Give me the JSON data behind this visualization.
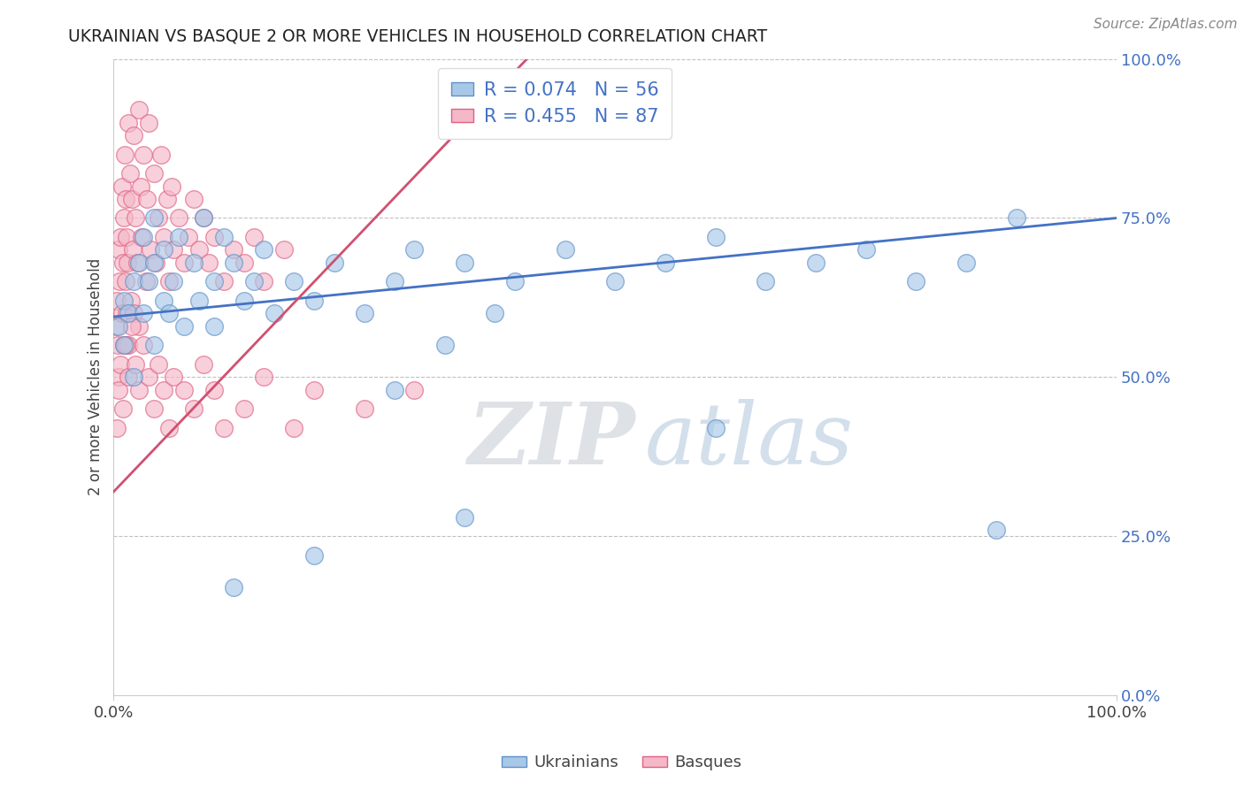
{
  "title": "UKRAINIAN VS BASQUE 2 OR MORE VEHICLES IN HOUSEHOLD CORRELATION CHART",
  "ylabel": "2 or more Vehicles in Household",
  "source_text": "Source: ZipAtlas.com",
  "watermark_zip": "ZIP",
  "watermark_atlas": "atlas",
  "blue_R": 0.074,
  "blue_N": 56,
  "pink_R": 0.455,
  "pink_N": 87,
  "blue_color": "#a8c8e8",
  "pink_color": "#f4b8c8",
  "blue_edge_color": "#6090c8",
  "pink_edge_color": "#e06080",
  "blue_line_color": "#4472c4",
  "pink_line_color": "#d05070",
  "ytick_labels": [
    "0.0%",
    "25.0%",
    "50.0%",
    "75.0%",
    "100.0%"
  ],
  "ytick_values": [
    0.0,
    0.25,
    0.5,
    0.75,
    1.0
  ],
  "blue_x": [
    0.005,
    0.01,
    0.01,
    0.015,
    0.02,
    0.02,
    0.025,
    0.03,
    0.03,
    0.035,
    0.04,
    0.04,
    0.04,
    0.05,
    0.05,
    0.055,
    0.06,
    0.065,
    0.07,
    0.08,
    0.085,
    0.09,
    0.1,
    0.1,
    0.11,
    0.12,
    0.13,
    0.14,
    0.15,
    0.16,
    0.18,
    0.2,
    0.22,
    0.25,
    0.28,
    0.3,
    0.33,
    0.35,
    0.38,
    0.4,
    0.45,
    0.5,
    0.55,
    0.6,
    0.65,
    0.7,
    0.75,
    0.8,
    0.85,
    0.9,
    0.12,
    0.2,
    0.28,
    0.35,
    0.6,
    0.88
  ],
  "blue_y": [
    0.58,
    0.62,
    0.55,
    0.6,
    0.65,
    0.5,
    0.68,
    0.6,
    0.72,
    0.65,
    0.55,
    0.68,
    0.75,
    0.62,
    0.7,
    0.6,
    0.65,
    0.72,
    0.58,
    0.68,
    0.62,
    0.75,
    0.65,
    0.58,
    0.72,
    0.68,
    0.62,
    0.65,
    0.7,
    0.6,
    0.65,
    0.62,
    0.68,
    0.6,
    0.65,
    0.7,
    0.55,
    0.68,
    0.6,
    0.65,
    0.7,
    0.65,
    0.68,
    0.72,
    0.65,
    0.68,
    0.7,
    0.65,
    0.68,
    0.75,
    0.17,
    0.22,
    0.48,
    0.28,
    0.42,
    0.26
  ],
  "pink_x": [
    0.002,
    0.003,
    0.004,
    0.005,
    0.005,
    0.006,
    0.007,
    0.008,
    0.008,
    0.009,
    0.01,
    0.01,
    0.011,
    0.012,
    0.012,
    0.013,
    0.013,
    0.014,
    0.015,
    0.015,
    0.016,
    0.017,
    0.018,
    0.019,
    0.02,
    0.02,
    0.022,
    0.023,
    0.025,
    0.025,
    0.027,
    0.028,
    0.03,
    0.032,
    0.033,
    0.035,
    0.037,
    0.04,
    0.042,
    0.045,
    0.047,
    0.05,
    0.053,
    0.055,
    0.058,
    0.06,
    0.065,
    0.07,
    0.075,
    0.08,
    0.085,
    0.09,
    0.095,
    0.1,
    0.11,
    0.12,
    0.13,
    0.14,
    0.15,
    0.17,
    0.003,
    0.005,
    0.007,
    0.009,
    0.012,
    0.015,
    0.018,
    0.022,
    0.025,
    0.03,
    0.035,
    0.04,
    0.045,
    0.05,
    0.055,
    0.06,
    0.07,
    0.08,
    0.09,
    0.1,
    0.11,
    0.13,
    0.15,
    0.18,
    0.2,
    0.25,
    0.3
  ],
  "pink_y": [
    0.58,
    0.62,
    0.55,
    0.7,
    0.5,
    0.65,
    0.72,
    0.6,
    0.8,
    0.68,
    0.75,
    0.55,
    0.85,
    0.65,
    0.78,
    0.72,
    0.6,
    0.68,
    0.9,
    0.55,
    0.82,
    0.62,
    0.78,
    0.7,
    0.88,
    0.6,
    0.75,
    0.68,
    0.92,
    0.58,
    0.8,
    0.72,
    0.85,
    0.65,
    0.78,
    0.9,
    0.7,
    0.82,
    0.68,
    0.75,
    0.85,
    0.72,
    0.78,
    0.65,
    0.8,
    0.7,
    0.75,
    0.68,
    0.72,
    0.78,
    0.7,
    0.75,
    0.68,
    0.72,
    0.65,
    0.7,
    0.68,
    0.72,
    0.65,
    0.7,
    0.42,
    0.48,
    0.52,
    0.45,
    0.55,
    0.5,
    0.58,
    0.52,
    0.48,
    0.55,
    0.5,
    0.45,
    0.52,
    0.48,
    0.42,
    0.5,
    0.48,
    0.45,
    0.52,
    0.48,
    0.42,
    0.45,
    0.5,
    0.42,
    0.48,
    0.45,
    0.48
  ]
}
